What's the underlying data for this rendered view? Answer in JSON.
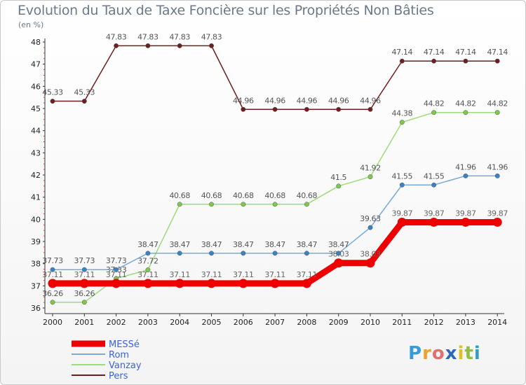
{
  "chart_data": {
    "type": "line",
    "title": "Evolution du Taux de Taxe Foncière sur les Propriétés Non Bâties",
    "ylabel": "(en %)",
    "xlabel": "",
    "ylim": [
      36,
      48
    ],
    "yticks": [
      "36",
      "37",
      "38",
      "39",
      "40",
      "41",
      "42",
      "43",
      "44",
      "45",
      "46",
      "47",
      "48"
    ],
    "categories": [
      "2000",
      "2001",
      "2002",
      "2003",
      "2004",
      "2005",
      "2006",
      "2007",
      "2008",
      "2009",
      "2010",
      "2011",
      "2012",
      "2013",
      "2014"
    ],
    "series": [
      {
        "name": "Pers",
        "color": "#6e1e1e",
        "marker": "#6e1e1e",
        "values": [
          45.33,
          45.33,
          47.83,
          47.83,
          47.83,
          47.83,
          44.96,
          44.96,
          44.96,
          44.96,
          44.96,
          47.14,
          47.14,
          47.14,
          47.14
        ],
        "labels": [
          "45.33",
          "45.33",
          "47.83",
          "47.83",
          "47.83",
          "47.83",
          "44.96",
          "44.96",
          "44.96",
          "44.96",
          "44.96",
          "47.14",
          "47.14",
          "47.14",
          "47.14"
        ]
      },
      {
        "name": "Vanzay",
        "color": "#9edb7c",
        "marker": "#7ec84c",
        "values": [
          36.26,
          36.26,
          37.33,
          37.72,
          40.68,
          40.68,
          40.68,
          40.68,
          40.68,
          41.5,
          41.92,
          44.38,
          44.82,
          44.82,
          44.82
        ],
        "labels": [
          "36.26",
          "36.26",
          "37.33",
          "37.72",
          "40.68",
          "40.68",
          "40.68",
          "40.68",
          "40.68",
          "41.5",
          "41.92",
          "44.38",
          "44.82",
          "44.82",
          "44.82"
        ]
      },
      {
        "name": "Rom",
        "color": "#7aaad8",
        "marker": "#3a82c8",
        "values": [
          37.73,
          37.73,
          37.73,
          38.47,
          38.47,
          38.47,
          38.47,
          38.47,
          38.47,
          38.47,
          39.63,
          41.55,
          41.55,
          41.96,
          41.96
        ],
        "labels": [
          "37.73",
          "37.73",
          "37.73",
          "38.47",
          "38.47",
          "38.47",
          "38.47",
          "38.47",
          "38.47",
          "38.47",
          "39.63",
          "41.55",
          "41.55",
          "41.96",
          "41.96"
        ]
      },
      {
        "name": "MESSé",
        "color": "#ee0000",
        "marker": "#ee0000",
        "values": [
          37.11,
          37.11,
          37.11,
          37.11,
          37.11,
          37.11,
          37.11,
          37.11,
          37.11,
          38.03,
          38.03,
          39.87,
          39.87,
          39.87,
          39.87
        ],
        "labels": [
          "37.11",
          "37.11",
          "37.11",
          "37.11",
          "37.11",
          "37.11",
          "37.11",
          "37.11",
          "37.11",
          "38.03",
          "38.03",
          "39.87",
          "39.87",
          "39.87",
          "39.87"
        ]
      }
    ],
    "legend": {
      "placement": "bottom-left",
      "order": [
        "MESSé",
        "Rom",
        "Vanzay",
        "Pers"
      ],
      "text_color": "#3a64d8"
    },
    "grid": false
  },
  "logo": {
    "letters": [
      "P",
      "r",
      "o",
      "x",
      "i",
      "t",
      "i"
    ],
    "colors": [
      "#3a9ad9",
      "#f0a030",
      "#e07070",
      "#2a6ab9",
      "#e0c020",
      "#90c040",
      "#30a0c0"
    ]
  }
}
